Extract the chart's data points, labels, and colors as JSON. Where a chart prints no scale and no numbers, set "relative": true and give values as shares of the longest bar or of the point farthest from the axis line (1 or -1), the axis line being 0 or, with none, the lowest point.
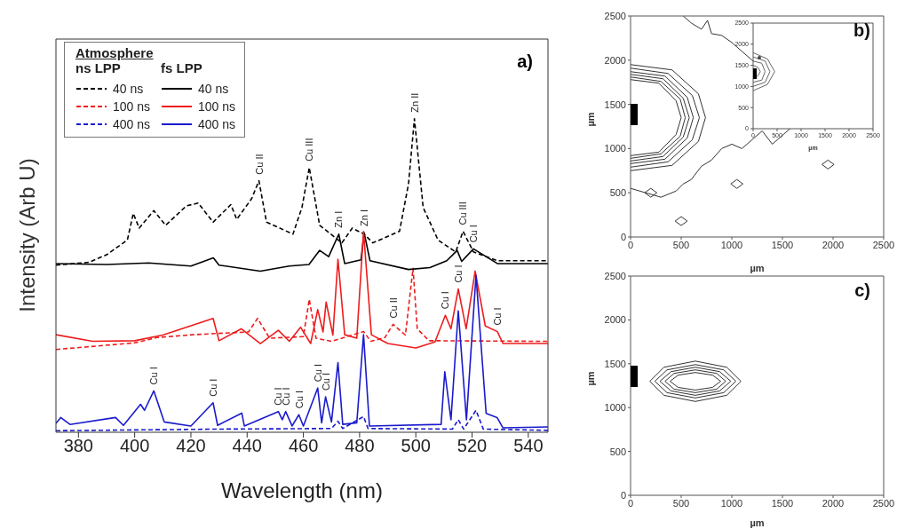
{
  "chart_data": [
    {
      "type": "line",
      "relative": true,
      "xlabel": "Wavelength (nm)",
      "ylabel": "Intensity (Arb U)",
      "xlim": [
        372,
        547
      ],
      "xticks": [
        380,
        400,
        420,
        440,
        460,
        480,
        500,
        520,
        540
      ],
      "legend": "top left",
      "legend_title": "Atmosphere",
      "annotations": [
        "ns LPP",
        "fs LPP",
        "a)",
        {
          "text": "Cu II",
          "x": 444.2,
          "y": 0.802
        },
        {
          "text": "Cu III",
          "x": 462.1,
          "y": 0.844
        },
        {
          "text": "Zn I",
          "x": 472.6,
          "y": 0.632
        },
        {
          "text": "Zn I",
          "x": 481.6,
          "y": 0.637
        },
        {
          "text": "Zn II",
          "x": 499.5,
          "y": 1.0
        },
        {
          "text": "Cu III",
          "x": 516.8,
          "y": 0.641
        },
        {
          "text": "Cu I",
          "x": 520.5,
          "y": 0.585
        },
        {
          "text": "Cu II",
          "x": 491.9,
          "y": 0.344
        },
        {
          "text": "Cu I",
          "x": 510.5,
          "y": 0.373
        },
        {
          "text": "Cu I",
          "x": 515.1,
          "y": 0.457
        },
        {
          "text": "Cu I",
          "x": 529,
          "y": 0.321
        },
        {
          "text": "Cu I",
          "x": 406.8,
          "y": 0.132
        },
        {
          "text": "Cu I",
          "x": 427.9,
          "y": 0.094
        },
        {
          "text": "Cu I",
          "x": 451.1,
          "y": 0.066
        },
        {
          "text": "Cu I",
          "x": 453.7,
          "y": 0.066
        },
        {
          "text": "Cu I",
          "x": 458.4,
          "y": 0.056
        },
        {
          "text": "Cu I",
          "x": 465.1,
          "y": 0.141
        },
        {
          "text": "Cu I",
          "x": 467.9,
          "y": 0.113
        }
      ],
      "series": [
        {
          "name": "40 ns",
          "color": "#000000",
          "line_style": "dashed",
          "x": [
            372,
            383.7,
            390,
            397.4,
            399.5,
            401.6,
            406.8,
            411,
            418.4,
            422.6,
            427.9,
            434.2,
            436.3,
            441.6,
            444.2,
            446.9,
            456.3,
            459.5,
            462.1,
            465.8,
            473.7,
            477.4,
            481.6,
            484.7,
            494.2,
            497.4,
            499.5,
            502.6,
            507.9,
            514.2,
            516.8,
            520.5,
            529,
            547
          ],
          "values": [
            0.533,
            0.542,
            0.566,
            0.613,
            0.698,
            0.651,
            0.707,
            0.66,
            0.722,
            0.731,
            0.67,
            0.726,
            0.679,
            0.745,
            0.802,
            0.67,
            0.632,
            0.717,
            0.844,
            0.66,
            0.604,
            0.651,
            0.632,
            0.604,
            0.641,
            0.792,
            1.0,
            0.717,
            0.613,
            0.575,
            0.641,
            0.575,
            0.547,
            0.547
          ]
        },
        {
          "name": "100 ns",
          "color": "#ee1c1c",
          "line_style": "dashed",
          "x": [
            372,
            400,
            407.9,
            420.5,
            440.5,
            443.7,
            448,
            460,
            462.1,
            464.5,
            470,
            481.4,
            484,
            489,
            491.9,
            496.3,
            499,
            500.5,
            504.7,
            547
          ],
          "values": [
            0.264,
            0.285,
            0.302,
            0.311,
            0.32,
            0.363,
            0.3,
            0.305,
            0.424,
            0.3,
            0.29,
            0.321,
            0.29,
            0.302,
            0.344,
            0.31,
            0.523,
            0.33,
            0.292,
            0.29
          ]
        },
        {
          "name": "400 ns",
          "color": "#1a1acc",
          "line_style": "dashed",
          "x": [
            372,
            430,
            470,
            472.3,
            474,
            481.4,
            483,
            513,
            515.1,
            517,
            521.4,
            524,
            547
          ],
          "values": [
            0.005,
            0.01,
            0.012,
            0.035,
            0.012,
            0.05,
            0.012,
            0.01,
            0.04,
            0.01,
            0.07,
            0.01,
            0.006
          ]
        },
        {
          "name": "40 ns",
          "color": "#000000",
          "line_style": "solid",
          "x": [
            372,
            390,
            405,
            420,
            428,
            430,
            444.7,
            455,
            462,
            465.8,
            469,
            472.6,
            474.7,
            480.5,
            481.6,
            483.7,
            497.4,
            505,
            511,
            514.7,
            516.3,
            520.5,
            529,
            547
          ],
          "values": [
            0.538,
            0.535,
            0.54,
            0.53,
            0.556,
            0.533,
            0.514,
            0.53,
            0.535,
            0.58,
            0.56,
            0.632,
            0.538,
            0.55,
            0.637,
            0.547,
            0.519,
            0.525,
            0.547,
            0.58,
            0.545,
            0.585,
            0.538,
            0.538
          ]
        },
        {
          "name": "100 ns",
          "color": "#ee1c1c",
          "line_style": "solid",
          "x": [
            372,
            385,
            400,
            410,
            427.9,
            430,
            437.9,
            444.7,
            451.1,
            455,
            459,
            462.6,
            465.1,
            467,
            468.1,
            470.5,
            472.3,
            474.7,
            479,
            481.4,
            484.2,
            490,
            500,
            506.8,
            510.5,
            512.5,
            515.1,
            517.9,
            521.1,
            524.7,
            529,
            531,
            547
          ],
          "values": [
            0.311,
            0.29,
            0.292,
            0.31,
            0.363,
            0.292,
            0.33,
            0.283,
            0.325,
            0.29,
            0.335,
            0.283,
            0.391,
            0.32,
            0.415,
            0.31,
            0.552,
            0.311,
            0.3,
            0.64,
            0.311,
            0.283,
            0.269,
            0.288,
            0.373,
            0.33,
            0.457,
            0.33,
            0.514,
            0.339,
            0.321,
            0.283,
            0.283
          ]
        },
        {
          "name": "400 ns",
          "color": "#1a1acc",
          "line_style": "solid",
          "x": [
            372,
            373.7,
            377,
            393.2,
            396,
            402.1,
            403.5,
            406.8,
            410.5,
            420,
            427.9,
            429.5,
            438.1,
            439,
            451.1,
            452.5,
            453.7,
            456,
            458.4,
            460,
            465.1,
            466.5,
            467.9,
            470,
            472.3,
            474,
            479,
            481.4,
            483.5,
            509,
            510.3,
            512.5,
            515.1,
            518,
            521.4,
            525,
            528.9,
            531,
            547
          ],
          "values": [
            0.028,
            0.047,
            0.025,
            0.047,
            0.022,
            0.089,
            0.07,
            0.132,
            0.033,
            0.02,
            0.094,
            0.022,
            0.061,
            0.02,
            0.066,
            0.04,
            0.066,
            0.02,
            0.056,
            0.02,
            0.141,
            0.03,
            0.113,
            0.033,
            0.222,
            0.025,
            0.03,
            0.311,
            0.02,
            0.025,
            0.193,
            0.04,
            0.387,
            0.04,
            0.5,
            0.06,
            0.047,
            0.014,
            0.017
          ]
        }
      ]
    },
    {
      "type": "line",
      "xlabel": "µm",
      "ylabel": "µm",
      "xlim": [
        0,
        2500
      ],
      "ylim": [
        0,
        2500
      ],
      "xticks": [
        0,
        500,
        1000,
        1500,
        2000,
        2500
      ],
      "yticks": [
        0,
        500,
        1000,
        1500,
        2000,
        2500
      ],
      "annotations": [
        "b)"
      ],
      "series": [
        {
          "color": "#333333",
          "x": [
            0,
            280,
            450,
            500,
            450,
            280,
            0
          ],
          "values": [
            920,
            960,
            1160,
            1350,
            1540,
            1740,
            1780
          ]
        },
        {
          "color": "#333333",
          "x": [
            0,
            300,
            490,
            540,
            490,
            300,
            0
          ],
          "values": [
            890,
            940,
            1140,
            1350,
            1560,
            1760,
            1810
          ]
        },
        {
          "color": "#333333",
          "x": [
            0,
            320,
            520,
            580,
            520,
            320,
            0
          ],
          "values": [
            860,
            910,
            1130,
            1350,
            1570,
            1790,
            1840
          ]
        },
        {
          "color": "#333333",
          "x": [
            0,
            340,
            560,
            620,
            560,
            340,
            0
          ],
          "values": [
            830,
            880,
            1120,
            1350,
            1580,
            1820,
            1870
          ]
        },
        {
          "color": "#333333",
          "x": [
            0,
            370,
            610,
            680,
            610,
            370,
            0
          ],
          "values": [
            790,
            850,
            1100,
            1350,
            1600,
            1850,
            1910
          ]
        },
        {
          "color": "#333333",
          "x": [
            0,
            410,
            670,
            740,
            670,
            410,
            0
          ],
          "values": [
            750,
            810,
            1080,
            1350,
            1620,
            1890,
            1950
          ]
        },
        {
          "color": "#333333",
          "x": [
            520,
            600,
            700,
            760,
            800,
            900,
            1000,
            1100,
            1200,
            1300,
            1380
          ],
          "values": [
            2500,
            2420,
            2350,
            2450,
            2300,
            2280,
            2200,
            2100,
            2000,
            1900,
            1830
          ]
        },
        {
          "color": "#333333",
          "x": [
            0,
            150,
            300,
            450,
            520,
            600,
            700,
            800,
            900,
            1000,
            1100,
            1200,
            1300,
            1400,
            1500,
            1600
          ],
          "values": [
            550,
            500,
            450,
            520,
            600,
            650,
            800,
            870,
            1000,
            1050,
            1000,
            1100,
            1200,
            1050,
            1150,
            1250
          ]
        },
        {
          "color": "#333333",
          "x": [
            140,
            200,
            260
          ],
          "values": [
            500,
            550,
            500
          ]
        },
        {
          "color": "#333333",
          "x": [
            140,
            200,
            260
          ],
          "values": [
            500,
            450,
            500
          ]
        },
        {
          "color": "#333333",
          "x": [
            440,
            500,
            560
          ],
          "values": [
            180,
            230,
            180
          ]
        },
        {
          "color": "#333333",
          "x": [
            440,
            500,
            560
          ],
          "values": [
            180,
            130,
            180
          ]
        },
        {
          "color": "#333333",
          "x": [
            990,
            1050,
            1110
          ],
          "values": [
            600,
            650,
            600
          ]
        },
        {
          "color": "#333333",
          "x": [
            990,
            1050,
            1110
          ],
          "values": [
            600,
            550,
            600
          ]
        },
        {
          "color": "#333333",
          "x": [
            1890,
            1950,
            2010
          ],
          "values": [
            820,
            870,
            820
          ]
        },
        {
          "color": "#333333",
          "x": [
            1890,
            1950,
            2010
          ],
          "values": [
            820,
            770,
            820
          ]
        }
      ]
    },
    {
      "type": "line",
      "xlabel": "µm",
      "xlim": [
        0,
        2500
      ],
      "ylim": [
        0,
        2500
      ],
      "xticks": [
        0,
        500,
        1000,
        1500,
        2000,
        2500
      ],
      "yticks": [
        0,
        500,
        1000,
        1500,
        2000,
        2500
      ],
      "series": [
        {
          "color": "#666666",
          "x": [
            0,
            100,
            150,
            100,
            0
          ],
          "values": [
            1200,
            1250,
            1350,
            1450,
            1500
          ]
        },
        {
          "color": "#666666",
          "x": [
            0,
            180,
            250,
            180,
            0
          ],
          "values": [
            1100,
            1150,
            1350,
            1550,
            1600
          ]
        },
        {
          "color": "#666666",
          "x": [
            0,
            250,
            350,
            250,
            0
          ],
          "values": [
            1000,
            1100,
            1350,
            1600,
            1700
          ]
        },
        {
          "color": "#666666",
          "x": [
            0,
            300,
            450,
            300,
            0
          ],
          "values": [
            900,
            1050,
            1350,
            1650,
            1800
          ]
        }
      ]
    },
    {
      "type": "line",
      "xlabel": "µm",
      "ylabel": "µm",
      "xlim": [
        0,
        2500
      ],
      "ylim": [
        0,
        2500
      ],
      "xticks": [
        0,
        500,
        1000,
        1500,
        2000,
        2500
      ],
      "yticks": [
        0,
        500,
        1000,
        1500,
        2000,
        2500
      ],
      "annotations": [
        "c)"
      ],
      "series": [
        {
          "color": "#333333",
          "x": [
            390,
            470,
            640,
            810,
            890
          ],
          "values": [
            1300,
            1370,
            1400,
            1370,
            1300
          ]
        },
        {
          "color": "#333333",
          "x": [
            390,
            470,
            640,
            810,
            890
          ],
          "values": [
            1300,
            1230,
            1200,
            1230,
            1300
          ]
        },
        {
          "color": "#333333",
          "x": [
            340,
            430,
            640,
            850,
            940
          ],
          "values": [
            1300,
            1390,
            1430,
            1390,
            1300
          ]
        },
        {
          "color": "#333333",
          "x": [
            340,
            430,
            640,
            850,
            940
          ],
          "values": [
            1300,
            1210,
            1170,
            1210,
            1300
          ]
        },
        {
          "color": "#333333",
          "x": [
            290,
            400,
            640,
            880,
            990
          ],
          "values": [
            1300,
            1410,
            1460,
            1410,
            1300
          ]
        },
        {
          "color": "#333333",
          "x": [
            290,
            400,
            640,
            880,
            990
          ],
          "values": [
            1300,
            1190,
            1140,
            1190,
            1300
          ]
        },
        {
          "color": "#333333",
          "x": [
            240,
            360,
            640,
            920,
            1040
          ],
          "values": [
            1300,
            1430,
            1490,
            1430,
            1300
          ]
        },
        {
          "color": "#333333",
          "x": [
            240,
            360,
            640,
            920,
            1040
          ],
          "values": [
            1300,
            1170,
            1110,
            1170,
            1300
          ]
        },
        {
          "color": "#333333",
          "x": [
            190,
            330,
            640,
            950,
            1090
          ],
          "values": [
            1300,
            1460,
            1530,
            1460,
            1300
          ]
        },
        {
          "color": "#333333",
          "x": [
            190,
            330,
            640,
            950,
            1090
          ],
          "values": [
            1300,
            1140,
            1070,
            1140,
            1300
          ]
        }
      ]
    }
  ]
}
